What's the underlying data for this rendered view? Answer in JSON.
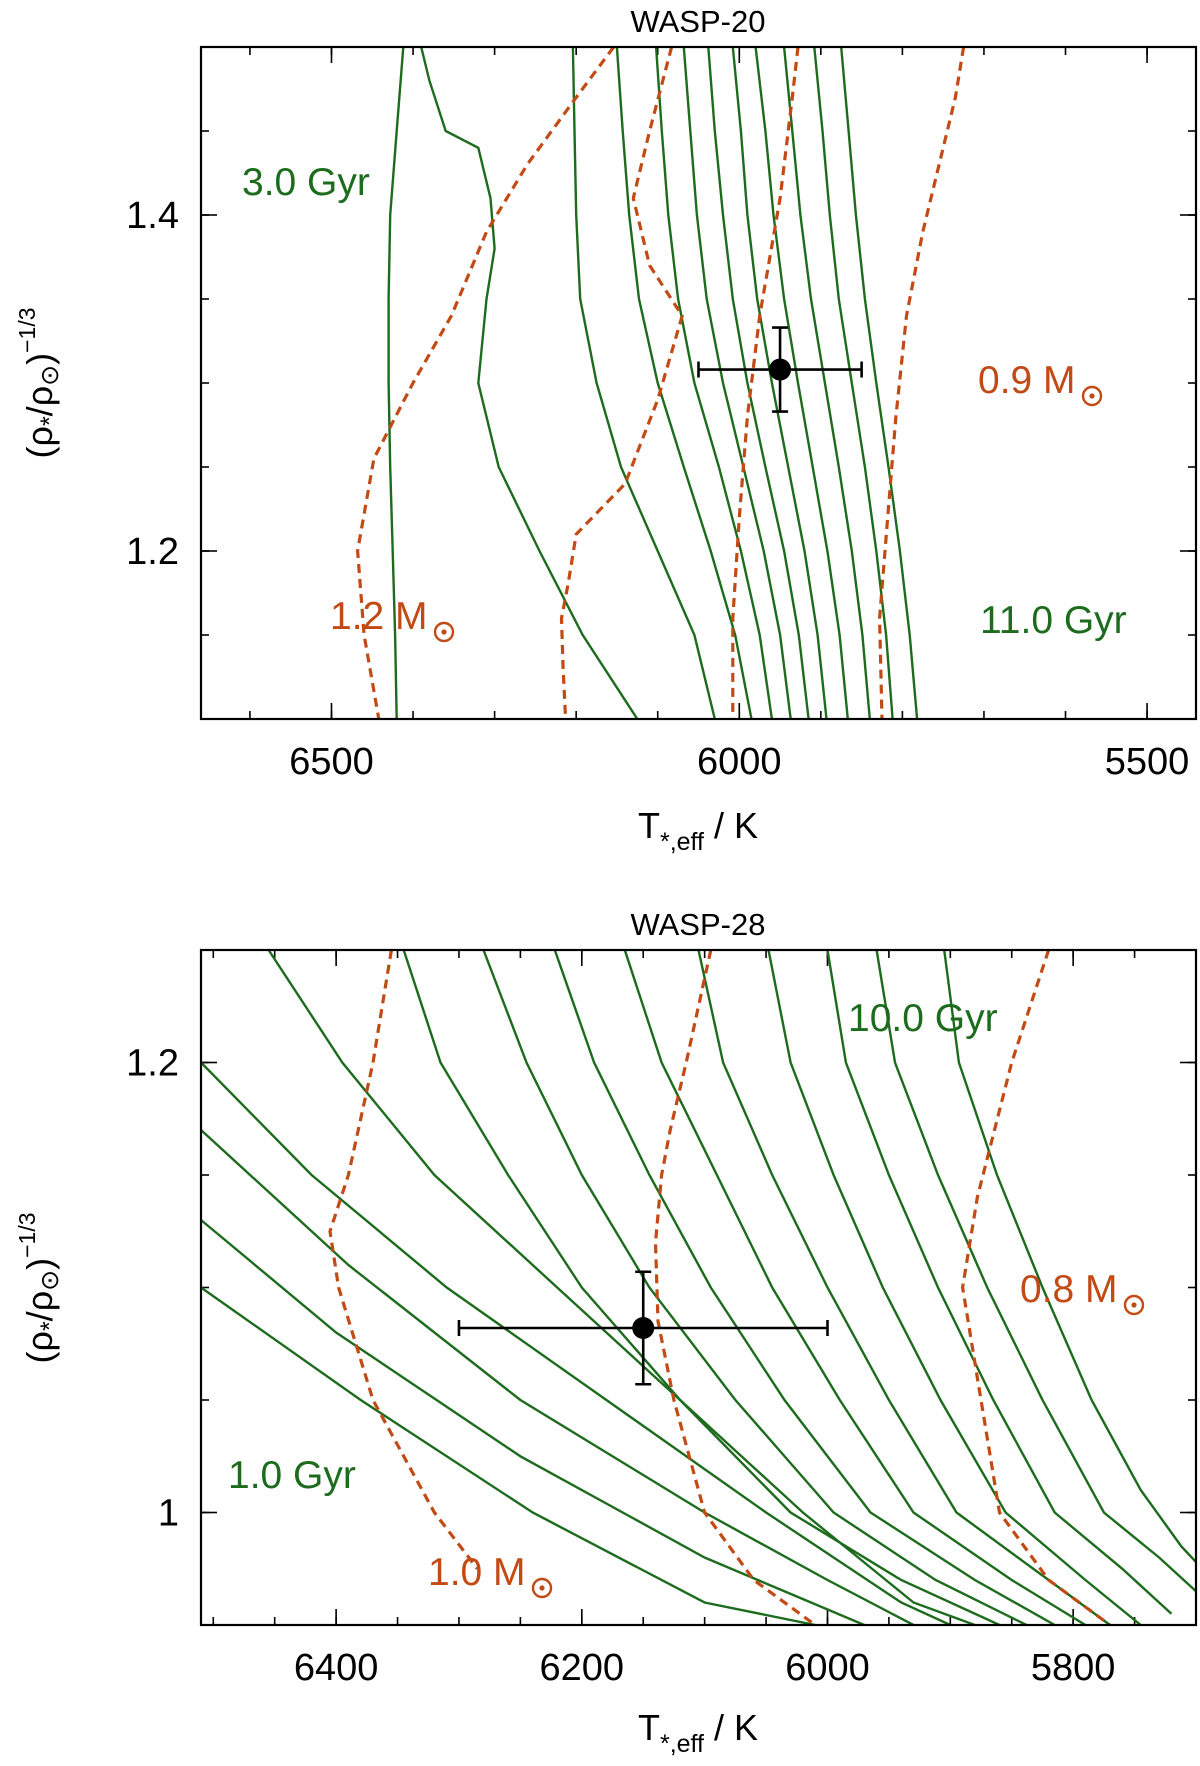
{
  "chart_data": [
    {
      "type": "line",
      "title": "WASP-20",
      "xlabel": "T*,eff / K",
      "ylabel": "(ρ*/ρ⊙)^-1/3",
      "xlim": [
        6660,
        5440
      ],
      "ylim": [
        1.1,
        1.5
      ],
      "xticks": [
        6500,
        6000,
        5500
      ],
      "xtick_labels": [
        "6500",
        "6000",
        "5500"
      ],
      "xminor_step": 100,
      "yticks": [
        1.2,
        1.4
      ],
      "ytick_labels": [
        "1.2",
        "1.4"
      ],
      "yminor_step": 0.05,
      "isochrones": [
        [
          [
            6412,
            1.5
          ],
          [
            6420,
            1.45
          ],
          [
            6428,
            1.4
          ],
          [
            6430,
            1.35
          ],
          [
            6430,
            1.3
          ],
          [
            6428,
            1.25
          ],
          [
            6425,
            1.2
          ],
          [
            6422,
            1.15
          ],
          [
            6420,
            1.1
          ]
        ],
        [
          [
            6390,
            1.5
          ],
          [
            6380,
            1.48
          ],
          [
            6360,
            1.45
          ],
          [
            6320,
            1.44
          ],
          [
            6305,
            1.41
          ],
          [
            6300,
            1.38
          ],
          [
            6310,
            1.35
          ],
          [
            6320,
            1.3
          ],
          [
            6295,
            1.25
          ],
          [
            6245,
            1.2
          ],
          [
            6192,
            1.15
          ],
          [
            6125,
            1.1
          ]
        ],
        [
          [
            6204,
            1.5
          ],
          [
            6202,
            1.45
          ],
          [
            6200,
            1.4
          ],
          [
            6195,
            1.35
          ],
          [
            6175,
            1.3
          ],
          [
            6145,
            1.25
          ],
          [
            6100,
            1.2
          ],
          [
            6055,
            1.15
          ],
          [
            6030,
            1.1
          ]
        ],
        [
          [
            6150,
            1.5
          ],
          [
            6143,
            1.45
          ],
          [
            6135,
            1.4
          ],
          [
            6123,
            1.35
          ],
          [
            6100,
            1.3
          ],
          [
            6068,
            1.25
          ],
          [
            6035,
            1.2
          ],
          [
            6005,
            1.15
          ],
          [
            5985,
            1.1
          ]
        ],
        [
          [
            6102,
            1.5
          ],
          [
            6095,
            1.45
          ],
          [
            6087,
            1.4
          ],
          [
            6075,
            1.35
          ],
          [
            6055,
            1.3
          ],
          [
            6025,
            1.25
          ],
          [
            5998,
            1.2
          ],
          [
            5975,
            1.15
          ],
          [
            5960,
            1.1
          ]
        ],
        [
          [
            6068,
            1.5
          ],
          [
            6060,
            1.45
          ],
          [
            6052,
            1.4
          ],
          [
            6040,
            1.35
          ],
          [
            6020,
            1.3
          ],
          [
            5995,
            1.25
          ],
          [
            5970,
            1.2
          ],
          [
            5950,
            1.15
          ],
          [
            5937,
            1.1
          ]
        ],
        [
          [
            6038,
            1.5
          ],
          [
            6030,
            1.45
          ],
          [
            6020,
            1.4
          ],
          [
            6008,
            1.35
          ],
          [
            5990,
            1.3
          ],
          [
            5968,
            1.25
          ],
          [
            5945,
            1.2
          ],
          [
            5927,
            1.15
          ],
          [
            5915,
            1.1
          ]
        ],
        [
          [
            6008,
            1.5
          ],
          [
            5998,
            1.45
          ],
          [
            5990,
            1.4
          ],
          [
            5978,
            1.35
          ],
          [
            5960,
            1.3
          ],
          [
            5940,
            1.25
          ],
          [
            5920,
            1.2
          ],
          [
            5904,
            1.15
          ],
          [
            5893,
            1.1
          ]
        ],
        [
          [
            5980,
            1.5
          ],
          [
            5968,
            1.45
          ],
          [
            5958,
            1.4
          ],
          [
            5945,
            1.35
          ],
          [
            5928,
            1.3
          ],
          [
            5910,
            1.25
          ],
          [
            5892,
            1.2
          ],
          [
            5877,
            1.15
          ],
          [
            5867,
            1.1
          ]
        ],
        [
          [
            5945,
            1.5
          ],
          [
            5935,
            1.45
          ],
          [
            5925,
            1.4
          ],
          [
            5912,
            1.35
          ],
          [
            5895,
            1.3
          ],
          [
            5878,
            1.25
          ],
          [
            5862,
            1.2
          ],
          [
            5849,
            1.15
          ],
          [
            5840,
            1.1
          ]
        ],
        [
          [
            5908,
            1.5
          ],
          [
            5898,
            1.45
          ],
          [
            5889,
            1.4
          ],
          [
            5878,
            1.35
          ],
          [
            5862,
            1.3
          ],
          [
            5846,
            1.25
          ],
          [
            5832,
            1.2
          ],
          [
            5820,
            1.15
          ],
          [
            5812,
            1.1
          ]
        ],
        [
          [
            5875,
            1.5
          ],
          [
            5866,
            1.45
          ],
          [
            5857,
            1.4
          ],
          [
            5846,
            1.35
          ],
          [
            5832,
            1.3
          ],
          [
            5817,
            1.25
          ],
          [
            5803,
            1.2
          ],
          [
            5791,
            1.15
          ],
          [
            5782,
            1.1
          ]
        ]
      ],
      "mass_tracks": [
        [
          [
            6154,
            1.5
          ],
          [
            6200,
            1.47
          ],
          [
            6260,
            1.43
          ],
          [
            6310,
            1.39
          ],
          [
            6353,
            1.34
          ],
          [
            6400,
            1.3
          ],
          [
            6448,
            1.255
          ],
          [
            6468,
            1.2
          ],
          [
            6460,
            1.15
          ],
          [
            6442,
            1.1
          ]
        ],
        [
          [
            6083,
            1.5
          ],
          [
            6110,
            1.45
          ],
          [
            6130,
            1.41
          ],
          [
            6110,
            1.37
          ],
          [
            6070,
            1.34
          ],
          [
            6100,
            1.29
          ],
          [
            6140,
            1.24
          ],
          [
            6200,
            1.21
          ],
          [
            6210,
            1.18
          ],
          [
            6218,
            1.16
          ],
          [
            6216,
            1.13
          ],
          [
            6213,
            1.1
          ]
        ],
        [
          [
            5928,
            1.5
          ],
          [
            5935,
            1.47
          ],
          [
            5950,
            1.41
          ],
          [
            5975,
            1.34
          ],
          [
            5990,
            1.28
          ],
          [
            6000,
            1.22
          ],
          [
            6008,
            1.16
          ],
          [
            6008,
            1.1
          ]
        ],
        [
          [
            5725,
            1.5
          ],
          [
            5735,
            1.47
          ],
          [
            5755,
            1.43
          ],
          [
            5775,
            1.39
          ],
          [
            5795,
            1.34
          ],
          [
            5808,
            1.28
          ],
          [
            5818,
            1.22
          ],
          [
            5828,
            1.16
          ],
          [
            5825,
            1.1
          ]
        ]
      ],
      "measurement": {
        "teff": 5950,
        "teff_err": 100,
        "value": 1.308,
        "value_err": 0.025
      },
      "annotations": {
        "age_young": "3.0 Gyr",
        "age_old": "11.0 Gyr",
        "mass_high": "1.2 M",
        "mass_low": "0.9 M"
      }
    },
    {
      "type": "line",
      "title": "WASP-28",
      "xlabel": "T*,eff / K",
      "ylabel": "(ρ*/ρ⊙)^-1/3",
      "xlim": [
        6510,
        5700
      ],
      "ylim": [
        0.95,
        1.25
      ],
      "xticks": [
        6400,
        6200,
        6000,
        5800
      ],
      "xtick_labels": [
        "6400",
        "6200",
        "6000",
        "5800"
      ],
      "xminor_step": 50,
      "yticks": [
        1.0,
        1.2
      ],
      "ytick_labels": [
        "1",
        "1.2"
      ],
      "yminor_step": 0.05,
      "isochrones": [
        [
          [
            6510,
            1.1
          ],
          [
            6380,
            1.05
          ],
          [
            6240,
            1.0
          ],
          [
            6100,
            0.96
          ],
          [
            6010,
            0.95
          ]
        ],
        [
          [
            6510,
            1.13
          ],
          [
            6400,
            1.08
          ],
          [
            6250,
            1.025
          ],
          [
            6100,
            0.98
          ],
          [
            5970,
            0.95
          ]
        ],
        [
          [
            6510,
            1.17
          ],
          [
            6390,
            1.11
          ],
          [
            6250,
            1.05
          ],
          [
            6100,
            1.0
          ],
          [
            6000,
            0.97
          ],
          [
            5930,
            0.95
          ]
        ],
        [
          [
            6510,
            1.2
          ],
          [
            6420,
            1.15
          ],
          [
            6310,
            1.1
          ],
          [
            6180,
            1.05
          ],
          [
            6050,
            1.0
          ],
          [
            5940,
            0.96
          ],
          [
            5900,
            0.95
          ]
        ],
        [
          [
            6455,
            1.25
          ],
          [
            6395,
            1.2
          ],
          [
            6320,
            1.15
          ],
          [
            6220,
            1.1
          ],
          [
            6120,
            1.05
          ],
          [
            6020,
            1.0
          ],
          [
            5930,
            0.96
          ],
          [
            5880,
            0.95
          ]
        ],
        [
          [
            6345,
            1.25
          ],
          [
            6315,
            1.2
          ],
          [
            6260,
            1.15
          ],
          [
            6200,
            1.1
          ],
          [
            6120,
            1.05
          ],
          [
            6030,
            1.0
          ],
          [
            5940,
            0.97
          ],
          [
            5860,
            0.95
          ]
        ],
        [
          [
            6280,
            1.25
          ],
          [
            6245,
            1.2
          ],
          [
            6200,
            1.15
          ],
          [
            6145,
            1.1
          ],
          [
            6075,
            1.05
          ],
          [
            5995,
            1.0
          ],
          [
            5912,
            0.97
          ],
          [
            5838,
            0.95
          ]
        ],
        [
          [
            6222,
            1.25
          ],
          [
            6190,
            1.2
          ],
          [
            6145,
            1.15
          ],
          [
            6095,
            1.1
          ],
          [
            6035,
            1.05
          ],
          [
            5965,
            1.0
          ],
          [
            5880,
            0.97
          ],
          [
            5815,
            0.95
          ]
        ],
        [
          [
            6165,
            1.25
          ],
          [
            6135,
            1.2
          ],
          [
            6090,
            1.15
          ],
          [
            6045,
            1.1
          ],
          [
            5990,
            1.05
          ],
          [
            5930,
            1.0
          ],
          [
            5850,
            0.97
          ],
          [
            5790,
            0.95
          ]
        ],
        [
          [
            6105,
            1.25
          ],
          [
            6085,
            1.2
          ],
          [
            6045,
            1.15
          ],
          [
            6000,
            1.1
          ],
          [
            5950,
            1.05
          ],
          [
            5895,
            1.0
          ],
          [
            5820,
            0.97
          ],
          [
            5770,
            0.95
          ]
        ],
        [
          [
            6048,
            1.25
          ],
          [
            6030,
            1.2
          ],
          [
            5995,
            1.15
          ],
          [
            5955,
            1.1
          ],
          [
            5908,
            1.05
          ],
          [
            5855,
            1.0
          ],
          [
            5790,
            0.97
          ],
          [
            5745,
            0.95
          ]
        ],
        [
          [
            6000,
            1.25
          ],
          [
            5985,
            1.2
          ],
          [
            5950,
            1.15
          ],
          [
            5910,
            1.1
          ],
          [
            5865,
            1.05
          ],
          [
            5815,
            1.0
          ],
          [
            5760,
            0.975
          ],
          [
            5720,
            0.955
          ]
        ],
        [
          [
            5960,
            1.25
          ],
          [
            5945,
            1.2
          ],
          [
            5910,
            1.15
          ],
          [
            5870,
            1.1
          ],
          [
            5825,
            1.05
          ],
          [
            5775,
            1.0
          ],
          [
            5730,
            0.98
          ],
          [
            5700,
            0.965
          ]
        ],
        [
          [
            5905,
            1.25
          ],
          [
            5893,
            1.2
          ],
          [
            5862,
            1.15
          ],
          [
            5825,
            1.1
          ],
          [
            5785,
            1.05
          ],
          [
            5745,
            1.01
          ],
          [
            5712,
            0.985
          ],
          [
            5700,
            0.978
          ]
        ]
      ],
      "mass_tracks": [
        [
          [
            6355,
            1.25
          ],
          [
            6370,
            1.2
          ],
          [
            6390,
            1.15
          ],
          [
            6405,
            1.125
          ],
          [
            6398,
            1.1
          ],
          [
            6370,
            1.05
          ],
          [
            6320,
            1.0
          ],
          [
            6285,
            0.975
          ]
        ],
        [
          [
            6095,
            1.25
          ],
          [
            6115,
            1.2
          ],
          [
            6128,
            1.17
          ],
          [
            6135,
            1.15
          ],
          [
            6140,
            1.12
          ],
          [
            6138,
            1.085
          ],
          [
            6125,
            1.05
          ],
          [
            6100,
            1.0
          ],
          [
            6060,
            0.97
          ],
          [
            6010,
            0.95
          ]
        ],
        [
          [
            5820,
            1.25
          ],
          [
            5850,
            1.2
          ],
          [
            5878,
            1.14
          ],
          [
            5890,
            1.1
          ],
          [
            5875,
            1.05
          ],
          [
            5860,
            1.0
          ],
          [
            5820,
            0.97
          ],
          [
            5770,
            0.95
          ]
        ]
      ],
      "measurement": {
        "teff": 6150,
        "teff_err": 150,
        "value": 1.082,
        "value_err": 0.025
      },
      "annotations": {
        "age_young": "1.0 Gyr",
        "age_old": "10.0 Gyr",
        "mass_high": "1.0 M",
        "mass_low": "0.8 M"
      }
    }
  ]
}
